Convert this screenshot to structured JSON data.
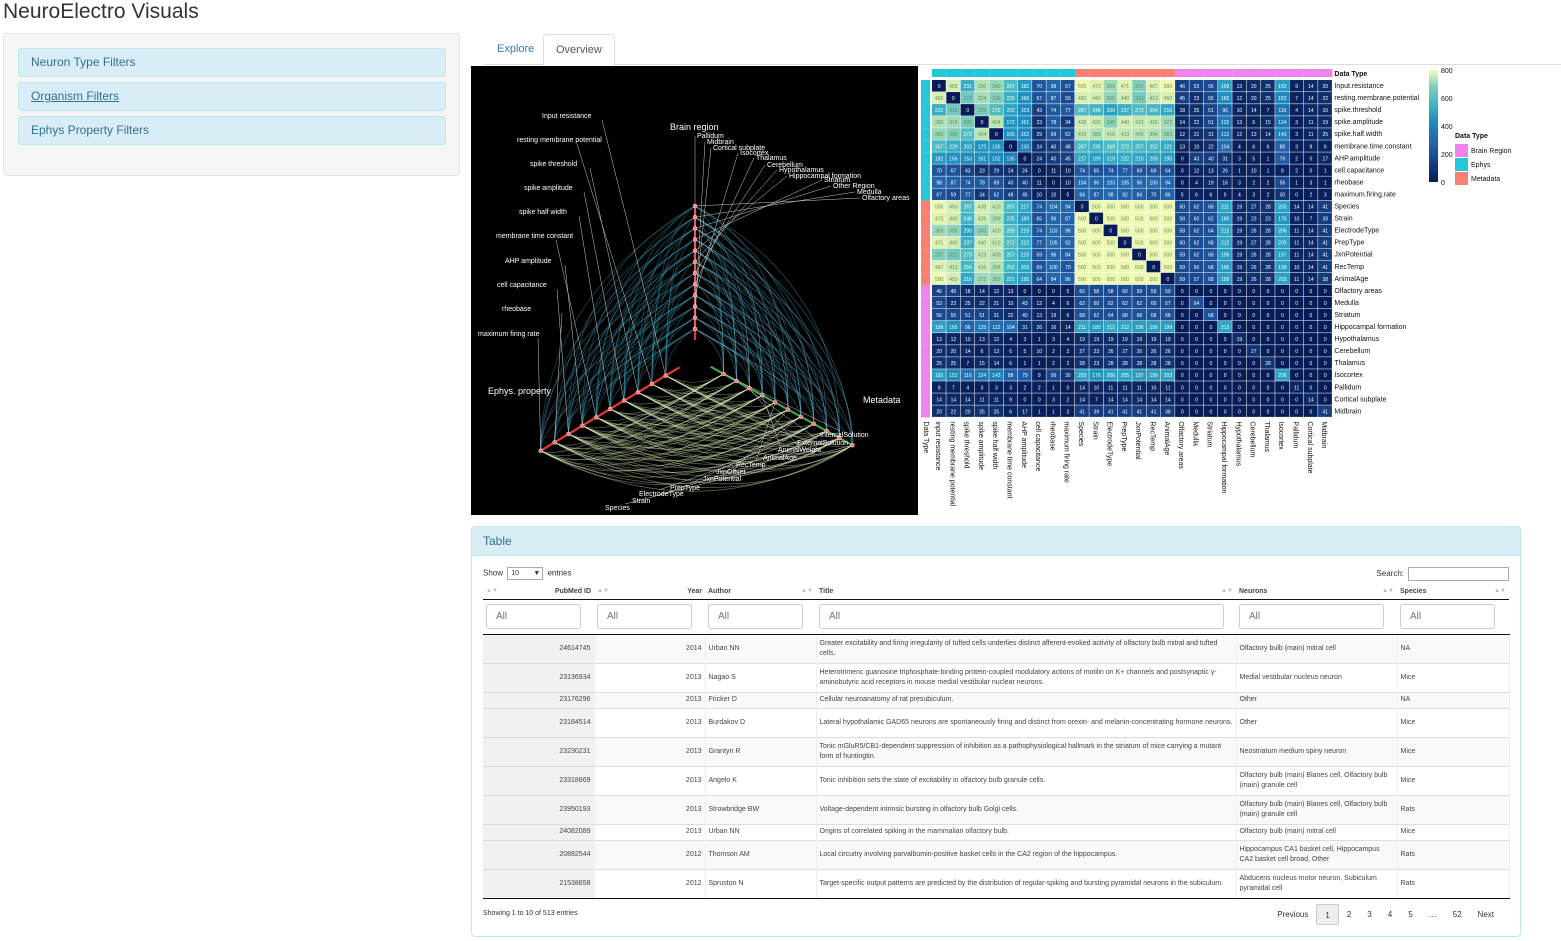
{
  "app": {
    "title": "NeuroElectro Visuals"
  },
  "sidebar": {
    "filters": [
      {
        "label": "Neuron Type Filters"
      },
      {
        "label": "Organism Filters"
      },
      {
        "label": "Ephys Property Filters"
      }
    ]
  },
  "tabs": [
    {
      "label": "Explore"
    },
    {
      "label": "Overview",
      "active": true
    }
  ],
  "network": {
    "axes": {
      "brain": "Brain region",
      "ephys": "Ephys. property",
      "meta": "Metadata"
    },
    "brain_labels": [
      "Pallidum",
      "Midbrain",
      "Cortical subplate",
      "Isocortex",
      "Thalamus",
      "Cerebellum",
      "Hypothalamus",
      "Hippocampal formation",
      "Striatum",
      "Other Region",
      "Medulla",
      "Olfactory areas"
    ],
    "ephys_labels": [
      "Input resistance",
      "resting membrane potential",
      "spike threshold",
      "spike amplitude",
      "spike half width",
      "membrane time constant",
      "AHP amplitude",
      "cell capacitance",
      "rheobase",
      "maximum firing rate"
    ],
    "meta_labels": [
      "InternalSolution",
      "ExternalSolution",
      "AnimalWeight",
      "AnimalAge",
      "RecTemp",
      "JxnOffset",
      "JxnPotential",
      "PrepType",
      "ElectrodeType",
      "Strain",
      "Species"
    ]
  },
  "heatmap": {
    "legend_title": "Data Type",
    "legend_items": [
      {
        "label": "Brain Region",
        "color": "#ee82ee"
      },
      {
        "label": "Ephys",
        "color": "#22c8d8"
      },
      {
        "label": "Metadata",
        "color": "#fa8072"
      }
    ],
    "scale_ticks": [
      "800",
      "600",
      "400",
      "200",
      "0"
    ],
    "row_labels": [
      "Input.resistance",
      "resting.membrane.potential",
      "spike.threshold",
      "spike.amplitude",
      "spike.half.width",
      "membrane.time.constant",
      "AHP.amplitude",
      "cell.capacitance",
      "rheobase",
      "maximum.firing.rate",
      "Species",
      "Strain",
      "ElectrodeType",
      "PrepType",
      "JxnPotential",
      "RecTemp",
      "AnimalAge",
      "Olfactory areas",
      "Medulla",
      "Striatum",
      "Hippocampal formation",
      "Hypothalamus",
      "Cerebellum",
      "Thalamus",
      "Isocortex",
      "Pallidum",
      "Cortical subplate",
      "Midbrain"
    ],
    "col_labels": [
      "input resistance",
      "resting membrane potential",
      "spike threshold",
      "spike amplitude",
      "spike half width",
      "membrane time constant",
      "AHP amplitude",
      "cell capacitance",
      "rheobase",
      "maximum firing rate",
      "Species",
      "Strain",
      "ElectrodeType",
      "PrepType",
      "JxnPotential",
      "RecTemp",
      "AnimalAge",
      "Olfactory areas",
      "Medulla",
      "Striatum",
      "Hippocampal formation",
      "Hypothalamus",
      "Cerebellum",
      "Thalamus",
      "Isocortex",
      "Pallidum",
      "Cortical subplate",
      "Midbrain"
    ],
    "col_axis_label": "Data Type",
    "values": [
      [
        0,
        455,
        231,
        390,
        360,
        267,
        182,
        70,
        98,
        67,
        500,
        473,
        369,
        471,
        337,
        467,
        500,
        46,
        53,
        56,
        199,
        13,
        20,
        25,
        192,
        9,
        14,
        20
      ],
      [
        455,
        0,
        318,
        374,
        336,
        229,
        166,
        67,
        87,
        59,
        450,
        440,
        355,
        440,
        321,
        413,
        450,
        45,
        23,
        55,
        165,
        12,
        20,
        25,
        152,
        7,
        14,
        22
      ],
      [
        231,
        318,
        0,
        325,
        272,
        202,
        153,
        43,
        74,
        77,
        267,
        248,
        200,
        237,
        273,
        254,
        216,
        18,
        25,
        51,
        96,
        10,
        14,
        7,
        116,
        4,
        14,
        16
      ],
      [
        390,
        374,
        325,
        0,
        404,
        172,
        161,
        23,
        78,
        34,
        438,
        426,
        345,
        440,
        413,
        416,
        372,
        14,
        22,
        51,
        125,
        13,
        6,
        15,
        124,
        3,
        11,
        19
      ],
      [
        360,
        336,
        272,
        404,
        0,
        165,
        152,
        29,
        69,
        62,
        410,
        389,
        410,
        413,
        400,
        394,
        363,
        12,
        21,
        31,
        112,
        12,
        13,
        14,
        143,
        3,
        11,
        25
      ],
      [
        267,
        229,
        202,
        172,
        165,
        0,
        135,
        24,
        40,
        48,
        267,
        235,
        269,
        272,
        257,
        252,
        221,
        13,
        10,
        22,
        104,
        4,
        6,
        6,
        88,
        3,
        9,
        6
      ],
      [
        182,
        166,
        153,
        161,
        152,
        135,
        0,
        24,
        40,
        45,
        217,
        189,
        219,
        222,
        210,
        209,
        195,
        0,
        43,
        40,
        31,
        3,
        5,
        1,
        79,
        2,
        0,
        17
      ],
      [
        70,
        67,
        43,
        23,
        29,
        24,
        24,
        0,
        11,
        10,
        74,
        65,
        74,
        77,
        69,
        69,
        64,
        0,
        12,
        13,
        26,
        1,
        10,
        1,
        9,
        2,
        0,
        1
      ],
      [
        98,
        87,
        74,
        78,
        69,
        40,
        40,
        11,
        0,
        10,
        104,
        96,
        103,
        105,
        96,
        100,
        94,
        0,
        4,
        19,
        16,
        3,
        2,
        2,
        56,
        1,
        3,
        1
      ],
      [
        67,
        59,
        77,
        34,
        62,
        48,
        45,
        10,
        10,
        0,
        94,
        87,
        98,
        92,
        84,
        70,
        86,
        5,
        6,
        6,
        5,
        4,
        3,
        2,
        30,
        0,
        2,
        3
      ],
      [
        500,
        450,
        267,
        438,
        410,
        267,
        217,
        74,
        104,
        94,
        0,
        500,
        500,
        500,
        500,
        500,
        500,
        60,
        62,
        68,
        211,
        19,
        27,
        28,
        203,
        14,
        14,
        41
      ],
      [
        473,
        440,
        248,
        426,
        389,
        235,
        189,
        65,
        96,
        87,
        500,
        0,
        500,
        500,
        500,
        500,
        500,
        58,
        60,
        62,
        180,
        19,
        23,
        23,
        176,
        10,
        7,
        39
      ],
      [
        369,
        355,
        200,
        345,
        410,
        269,
        219,
        74,
        103,
        98,
        500,
        500,
        0,
        500,
        500,
        500,
        500,
        58,
        62,
        64,
        212,
        19,
        26,
        28,
        206,
        11,
        14,
        41
      ],
      [
        471,
        440,
        237,
        440,
        413,
        272,
        222,
        77,
        105,
        92,
        500,
        500,
        500,
        0,
        500,
        500,
        500,
        60,
        62,
        68,
        212,
        19,
        27,
        28,
        205,
        11,
        14,
        41
      ],
      [
        337,
        321,
        273,
        413,
        400,
        257,
        210,
        69,
        96,
        84,
        500,
        500,
        500,
        500,
        0,
        500,
        500,
        59,
        62,
        68,
        196,
        19,
        26,
        28,
        197,
        11,
        14,
        41
      ],
      [
        467,
        413,
        254,
        416,
        394,
        252,
        209,
        69,
        100,
        70,
        500,
        500,
        500,
        500,
        500,
        0,
        500,
        59,
        60,
        68,
        196,
        19,
        26,
        28,
        199,
        10,
        14,
        41
      ],
      [
        500,
        450,
        216,
        372,
        363,
        221,
        195,
        64,
        94,
        86,
        500,
        500,
        500,
        500,
        500,
        500,
        0,
        59,
        57,
        68,
        199,
        19,
        26,
        28,
        203,
        11,
        14,
        38
      ],
      [
        46,
        45,
        18,
        14,
        12,
        13,
        0,
        0,
        0,
        5,
        60,
        58,
        58,
        60,
        59,
        59,
        59,
        0,
        0,
        0,
        0,
        0,
        0,
        0,
        0,
        0,
        0,
        0
      ],
      [
        53,
        23,
        25,
        22,
        21,
        10,
        43,
        12,
        4,
        6,
        62,
        60,
        62,
        62,
        62,
        60,
        57,
        0,
        64,
        0,
        0,
        0,
        0,
        0,
        0,
        0,
        0,
        0
      ],
      [
        56,
        55,
        51,
        51,
        31,
        22,
        40,
        13,
        19,
        6,
        68,
        62,
        64,
        68,
        68,
        68,
        68,
        0,
        0,
        68,
        0,
        0,
        0,
        0,
        0,
        0,
        0,
        0
      ],
      [
        199,
        165,
        96,
        125,
        112,
        104,
        31,
        26,
        16,
        14,
        211,
        180,
        212,
        212,
        196,
        196,
        199,
        0,
        0,
        0,
        212,
        0,
        0,
        0,
        0,
        0,
        0,
        0
      ],
      [
        13,
        12,
        10,
        13,
        12,
        4,
        3,
        1,
        3,
        4,
        19,
        19,
        19,
        19,
        19,
        19,
        19,
        0,
        0,
        0,
        0,
        19,
        0,
        0,
        0,
        0,
        0,
        0
      ],
      [
        20,
        20,
        14,
        6,
        13,
        6,
        5,
        10,
        2,
        3,
        27,
        23,
        26,
        27,
        26,
        26,
        26,
        0,
        0,
        0,
        0,
        0,
        27,
        0,
        0,
        0,
        0,
        0
      ],
      [
        25,
        25,
        7,
        15,
        14,
        6,
        1,
        1,
        2,
        2,
        28,
        23,
        28,
        28,
        28,
        28,
        28,
        0,
        0,
        0,
        0,
        0,
        0,
        28,
        0,
        0,
        0,
        0
      ],
      [
        192,
        152,
        116,
        124,
        143,
        88,
        79,
        9,
        56,
        30,
        203,
        176,
        206,
        205,
        197,
        199,
        203,
        0,
        0,
        0,
        0,
        0,
        0,
        0,
        206,
        0,
        0,
        0
      ],
      [
        9,
        7,
        4,
        3,
        3,
        3,
        2,
        2,
        1,
        0,
        14,
        10,
        11,
        11,
        11,
        10,
        11,
        0,
        0,
        0,
        0,
        0,
        0,
        0,
        0,
        11,
        0,
        0
      ],
      [
        14,
        14,
        14,
        11,
        11,
        9,
        0,
        0,
        3,
        2,
        14,
        7,
        14,
        14,
        14,
        14,
        14,
        0,
        0,
        0,
        0,
        0,
        0,
        0,
        0,
        0,
        14,
        0
      ],
      [
        20,
        22,
        20,
        25,
        25,
        6,
        17,
        1,
        1,
        3,
        41,
        39,
        41,
        41,
        41,
        41,
        38,
        0,
        0,
        0,
        0,
        0,
        0,
        0,
        0,
        0,
        0,
        41
      ]
    ]
  },
  "table": {
    "heading": "Table",
    "show_label": "Show",
    "entries_label": "entries",
    "length_value": "10",
    "search_label": "Search:",
    "columns": [
      "PubMed ID",
      "Year",
      "Author",
      "Title",
      "Neurons",
      "Species"
    ],
    "filter_placeholder": "All",
    "rows": [
      {
        "pmid": "24614745",
        "year": "2014",
        "author": "Urban NN",
        "title": "Greater excitability and firing irregularity of tufted cells underlies distinct afferent-evoked activity of olfactory bulb mitral and tufted cells.",
        "neurons": "Olfactory bulb (main) mitral cell",
        "species": "NA"
      },
      {
        "pmid": "23136934",
        "year": "2013",
        "author": "Nagao S",
        "title": "Heterotrimeric guanosine triphosphate-binding protein-coupled modulatory actions of motilin on K+ channels and postsynaptic γ-aminobutyric acid receptors in mouse medial vestibular nuclear neurons.",
        "neurons": "Medial vestibular nucleus neuron",
        "species": "Mice"
      },
      {
        "pmid": "23176296",
        "year": "2013",
        "author": "Fricker D",
        "title": "Cellular neuroanatomy of rat presubiculum.",
        "neurons": "Other",
        "species": "NA"
      },
      {
        "pmid": "23184514",
        "year": "2013",
        "author": "Burdakov D",
        "title": "Lateral hypothalamic GAD65 neurons are spontaneously firing and distinct from orexin- and melanin-concentrating hormone neurons.",
        "neurons": "Other",
        "species": "Mice"
      },
      {
        "pmid": "23230231",
        "year": "2013",
        "author": "Grantyn R",
        "title": "Tonic mGluR5/CB1-dependent suppression of inhibition as a pathophysiological hallmark in the striatum of mice carrying a mutant form of huntingtin.",
        "neurons": "Neostriatum medium spiny neuron",
        "species": "Mice"
      },
      {
        "pmid": "23318869",
        "year": "2013",
        "author": "Angelo K",
        "title": "Tonic inhibition sets the state of excitability in olfactory bulb granule cells.",
        "neurons": "Olfactory bulb (main) Blanes cell, Olfactory bulb (main) granule cell",
        "species": "Mice"
      },
      {
        "pmid": "23950193",
        "year": "2013",
        "author": "Strowbridge BW",
        "title": "Voltage-dependent intrinsic bursting in olfactory bulb Golgi cells.",
        "neurons": "Olfactory bulb (main) Blanes cell, Olfactory bulb (main) granule cell",
        "species": "Rats"
      },
      {
        "pmid": "24082089",
        "year": "2013",
        "author": "Urban NN",
        "title": "Origins of correlated spiking in the mammalian olfactory bulb.",
        "neurons": "Olfactory bulb (main) mitral cell",
        "species": "Mice"
      },
      {
        "pmid": "20882544",
        "year": "2012",
        "author": "Thomson AM",
        "title": "Local circuitry involving parvalbumin-positive basket cells in the CA2 region of the hippocampus.",
        "neurons": "Hippocampus CA1 basket cell, Hippocampus CA2 basket cell broad, Other",
        "species": "Rats"
      },
      {
        "pmid": "21538658",
        "year": "2012",
        "author": "Spruston N",
        "title": "Target-specific output patterns are predicted by the distribution of regular-spiking and bursting pyramidal neurons in the subiculum.",
        "neurons": "Abducens nucleus motor neuron, Subiculum pyramidal cell",
        "species": "Rats"
      }
    ],
    "info": "Showing 1 to 10 of 513 entries",
    "pager": {
      "previous": "Previous",
      "pages": [
        "1",
        "2",
        "3",
        "4",
        "5",
        "…",
        "52"
      ],
      "next": "Next"
    }
  }
}
